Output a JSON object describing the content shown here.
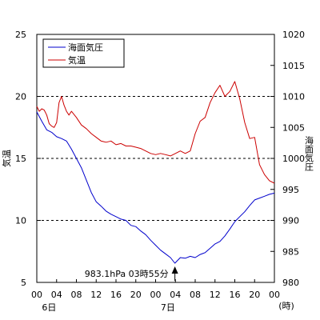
{
  "chart_data": {
    "type": "line",
    "left_axis": {
      "label": "気温",
      "ylim": [
        5,
        25
      ],
      "ticks": [
        5,
        10,
        15,
        20,
        25
      ]
    },
    "right_axis": {
      "label": "海面気圧",
      "ylim": [
        980,
        1020
      ],
      "ticks": [
        980,
        985,
        990,
        995,
        1000,
        1005,
        1010,
        1015,
        1020
      ]
    },
    "x_unit": "(時)",
    "x_range_hours": [
      0,
      48
    ],
    "x_ticks": [
      {
        "h": 0,
        "label": "00"
      },
      {
        "h": 4,
        "label": "04"
      },
      {
        "h": 8,
        "label": "08"
      },
      {
        "h": 12,
        "label": "12"
      },
      {
        "h": 16,
        "label": "16"
      },
      {
        "h": 20,
        "label": "20"
      },
      {
        "h": 24,
        "label": "00"
      },
      {
        "h": 28,
        "label": "04"
      },
      {
        "h": 32,
        "label": "08"
      },
      {
        "h": 36,
        "label": "12"
      },
      {
        "h": 40,
        "label": "16"
      },
      {
        "h": 44,
        "label": "20"
      },
      {
        "h": 48,
        "label": "00"
      }
    ],
    "day_labels": [
      {
        "h": 2,
        "label": "6日"
      },
      {
        "h": 26,
        "label": "7日"
      }
    ],
    "dashed_gridlines_left": [
      10,
      15,
      20
    ],
    "legend_placement": "top-left",
    "series": [
      {
        "name": "海面気圧",
        "axis": "right",
        "color": "#0000cc",
        "x_hours": [
          0,
          1,
          2,
          3,
          4,
          5,
          6,
          7,
          8,
          9,
          10,
          11,
          12,
          13,
          14,
          15,
          16,
          17,
          18,
          19,
          20,
          21,
          22,
          23,
          24,
          25,
          26,
          27,
          27.9,
          29,
          30,
          31,
          32,
          33,
          34,
          35,
          36,
          37,
          38,
          39,
          40,
          41,
          42,
          43,
          44,
          45,
          46,
          47,
          48
        ],
        "values": [
          1007.5,
          1006,
          1004.6,
          1004.2,
          1003.5,
          1003.2,
          1002.8,
          1001.5,
          1000,
          998.5,
          996.5,
          994.5,
          993,
          992.3,
          991.5,
          991,
          990.6,
          990.2,
          990,
          989.2,
          989,
          988.3,
          987.7,
          986.8,
          986,
          985.2,
          984.6,
          984,
          983.1,
          984,
          983.9,
          984.2,
          984,
          984.5,
          984.8,
          985.5,
          986.2,
          986.6,
          987.5,
          988.6,
          989.8,
          990.6,
          991.4,
          992.4,
          993.3,
          993.6,
          993.9,
          994.2,
          994.4
        ]
      },
      {
        "name": "気温",
        "axis": "left",
        "color": "#cc0000",
        "x_hours": [
          0,
          0.5,
          1,
          1.5,
          2,
          2.5,
          3,
          3.5,
          4,
          4.5,
          5,
          5.5,
          6,
          6.5,
          7,
          8,
          9,
          10,
          11,
          12,
          13,
          14,
          15,
          16,
          17,
          18,
          19,
          20,
          21,
          22,
          23,
          24,
          25,
          26,
          27,
          28,
          29,
          30,
          31,
          32,
          33,
          34,
          35,
          36,
          37,
          38,
          39,
          40,
          41,
          42,
          43,
          44,
          45,
          46,
          47,
          48
        ],
        "values": [
          19.2,
          18.8,
          19,
          18.9,
          18.5,
          17.8,
          17.6,
          17.5,
          17.9,
          19.5,
          20,
          19.3,
          18.8,
          18.5,
          18.8,
          18.3,
          17.7,
          17.4,
          17.0,
          16.7,
          16.4,
          16.3,
          16.4,
          16.1,
          16.2,
          16.0,
          16.0,
          15.9,
          15.8,
          15.6,
          15.4,
          15.3,
          15.4,
          15.3,
          15.2,
          15.4,
          15.6,
          15.4,
          15.6,
          17.0,
          18.0,
          18.3,
          19.5,
          20.3,
          20.9,
          20.0,
          20.4,
          21.2,
          19.8,
          17.9,
          16.6,
          16.7,
          14.5,
          13.7,
          13.2,
          13.0
        ]
      }
    ],
    "annotation": {
      "text": "983.1hPa  03時55分",
      "x_hour": 27.9
    }
  }
}
